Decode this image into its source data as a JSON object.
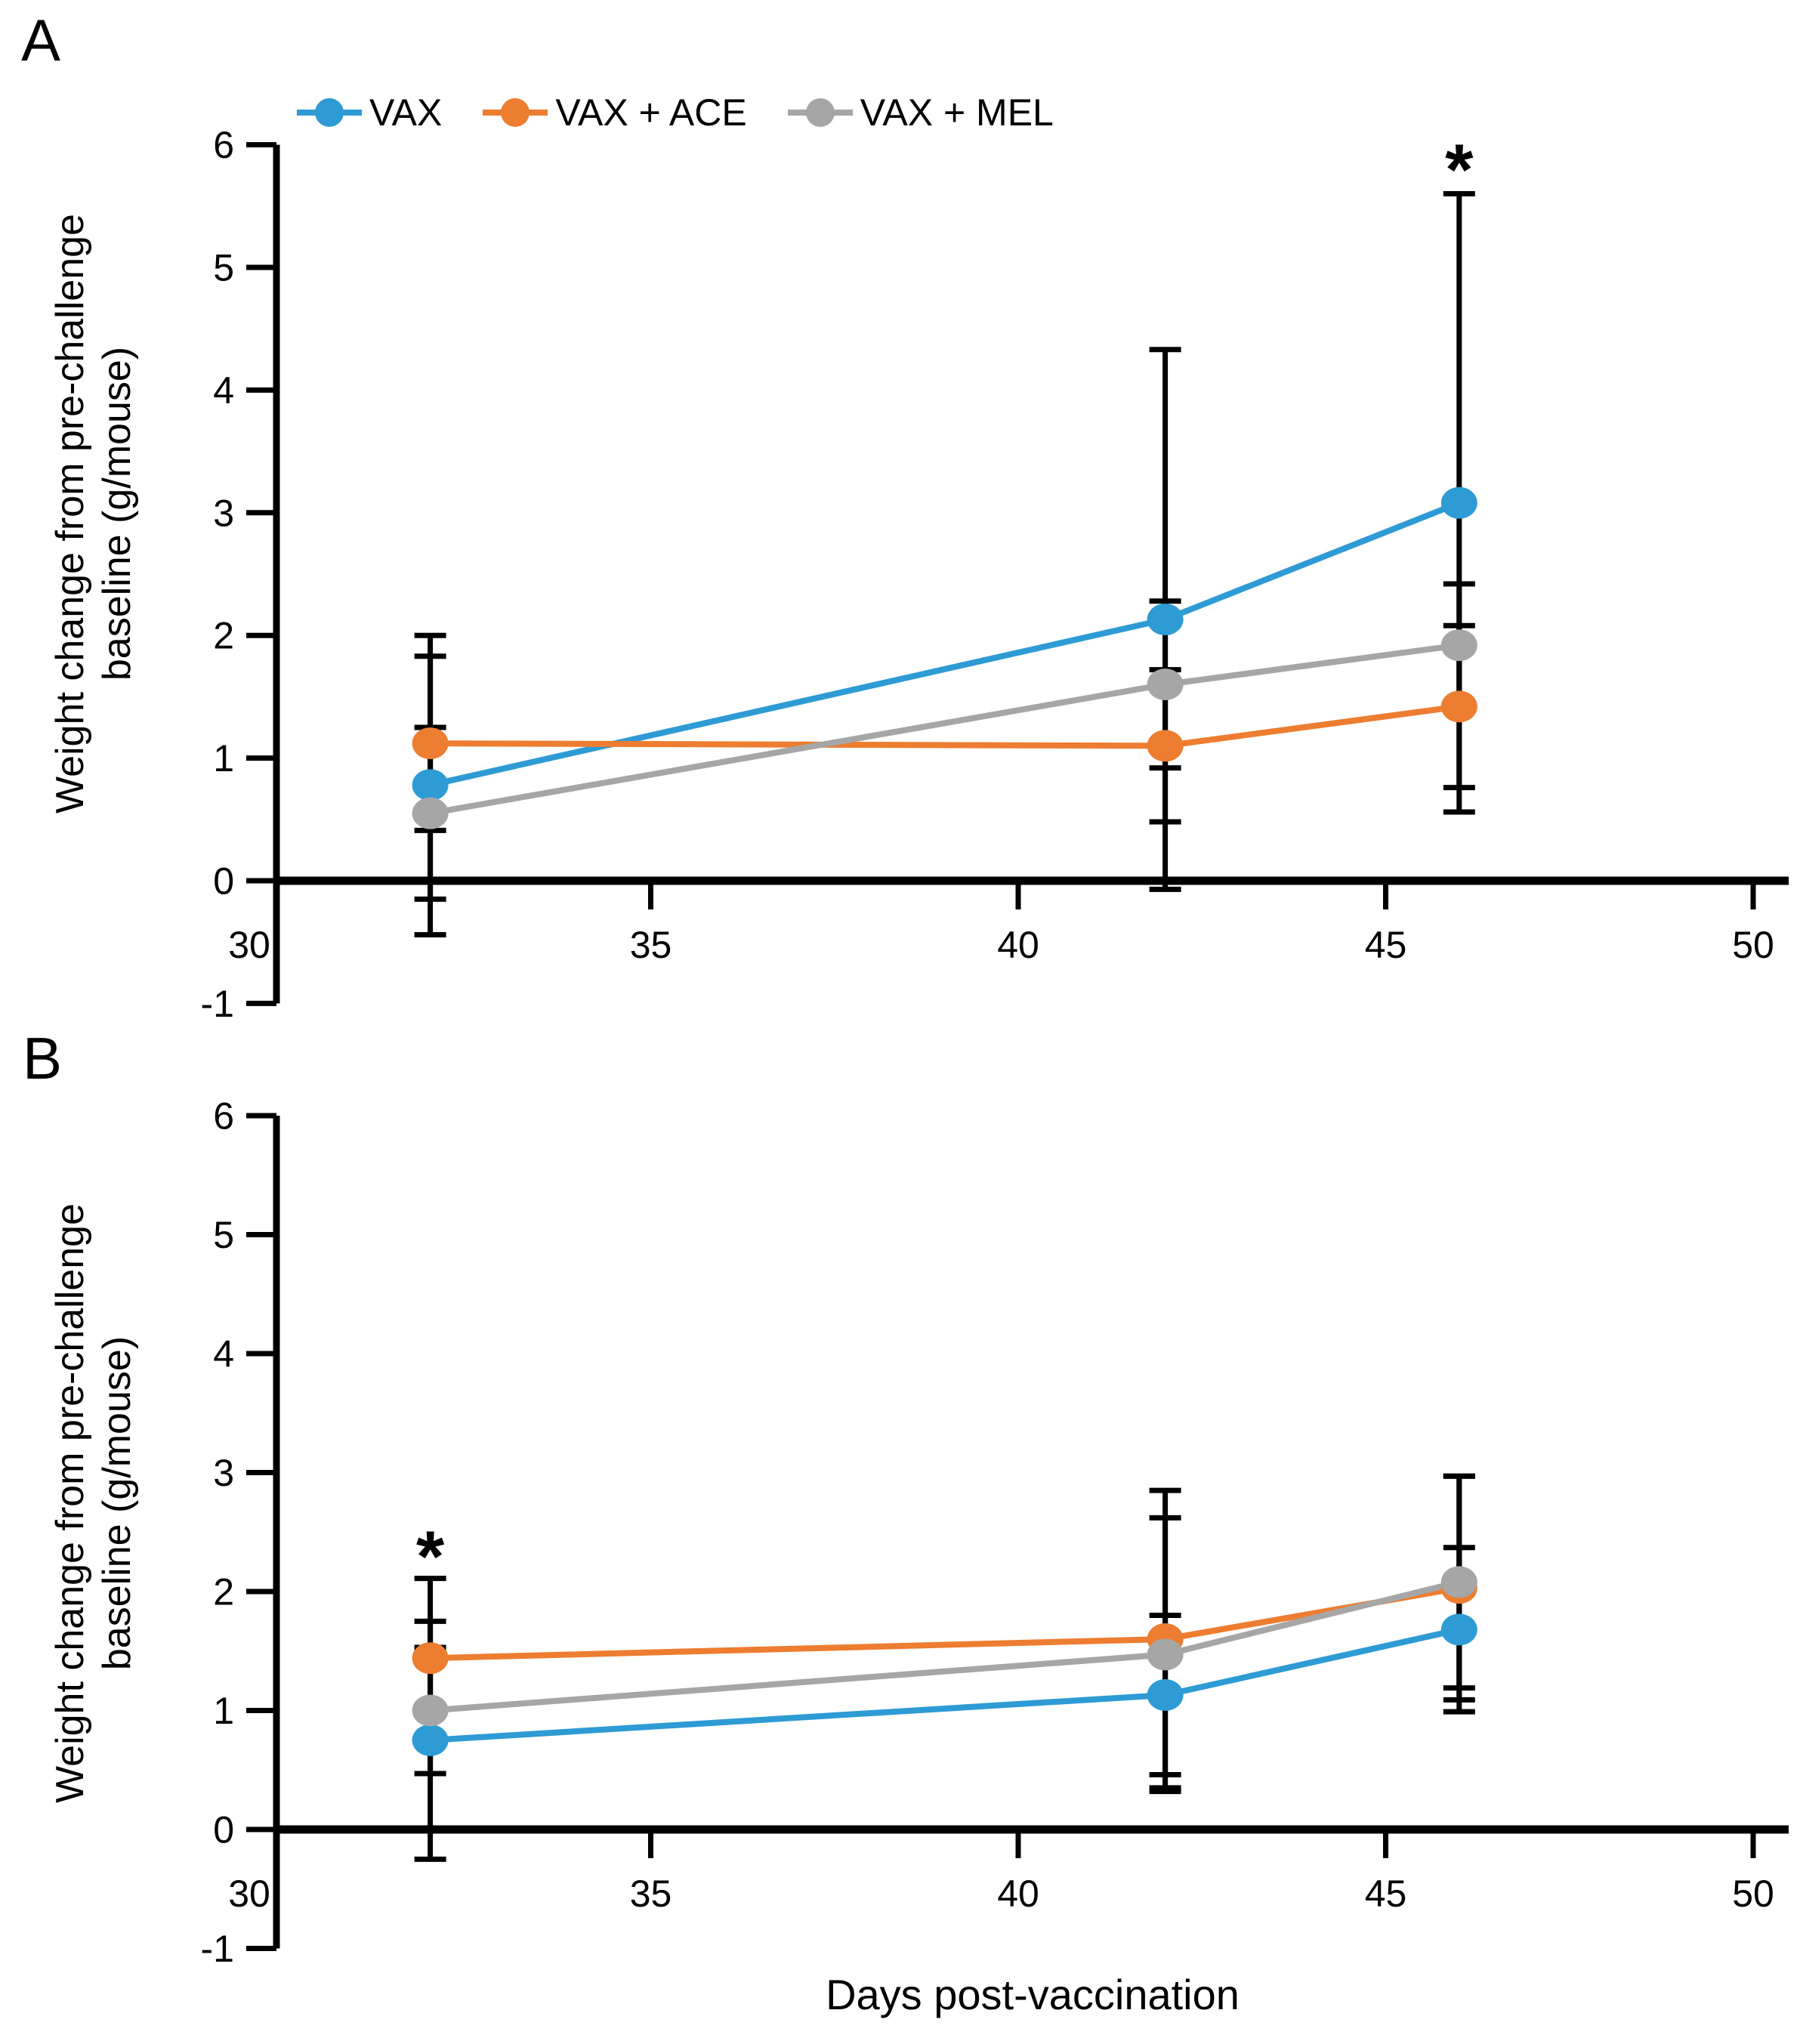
{
  "figure": {
    "panel_a_label": "A",
    "panel_b_label": "B",
    "y_axis_title_line1": "Weight change from pre-challenge",
    "y_axis_title_line2": "baseline (g/mouse)",
    "x_axis_title": "Days post-vaccination",
    "background_color": "#ffffff",
    "axis_color": "#000000"
  },
  "legend": {
    "position": "top",
    "items": [
      {
        "label": "VAX",
        "color": "#2E9BD5"
      },
      {
        "label": "VAX + ACE",
        "color": "#ED7D31"
      },
      {
        "label": "VAX + MEL",
        "color": "#A6A6A6"
      }
    ]
  },
  "chart_data": [
    {
      "type": "line",
      "panel": "A",
      "title": "",
      "xlabel": "Days post-vaccination",
      "ylabel": "Weight change from pre-challenge baseline (g/mouse)",
      "x": [
        32,
        42,
        46
      ],
      "xlim": [
        30,
        50
      ],
      "ylim": [
        -1,
        6
      ],
      "x_ticks": [
        30,
        35,
        40,
        45,
        50
      ],
      "y_ticks": [
        6,
        5,
        4,
        3,
        2,
        1,
        0,
        -1
      ],
      "grid": false,
      "error_bars": true,
      "series": [
        {
          "name": "VAX",
          "color": "#2E9BD5",
          "values": [
            0.78,
            2.13,
            3.08
          ],
          "error": [
            1.22,
            2.2,
            2.52
          ]
        },
        {
          "name": "VAX + ACE",
          "color": "#ED7D31",
          "values": [
            1.12,
            1.1,
            1.42
          ],
          "error": [
            0.71,
            0.62,
            0.66
          ]
        },
        {
          "name": "VAX + MEL",
          "color": "#A6A6A6",
          "values": [
            0.55,
            1.6,
            1.92
          ],
          "error": [
            0.7,
            0.68,
            0.5
          ]
        }
      ],
      "annotations": [
        {
          "text": "*",
          "x": 46,
          "y": 5.95
        }
      ]
    },
    {
      "type": "line",
      "panel": "B",
      "title": "",
      "xlabel": "Days post-vaccination",
      "ylabel": "Weight change from pre-challenge baseline (g/mouse)",
      "x": [
        32,
        42,
        46
      ],
      "xlim": [
        30,
        50
      ],
      "ylim": [
        -1,
        6
      ],
      "x_ticks": [
        30,
        35,
        40,
        45,
        50
      ],
      "y_ticks": [
        6,
        5,
        4,
        3,
        2,
        1,
        0,
        -1
      ],
      "grid": false,
      "error_bars": true,
      "series": [
        {
          "name": "VAX",
          "color": "#2E9BD5",
          "values": [
            0.75,
            1.13,
            1.68
          ],
          "error": [
            1.0,
            0.67,
            0.69
          ]
        },
        {
          "name": "VAX + ACE",
          "color": "#ED7D31",
          "values": [
            1.44,
            1.6,
            2.03
          ],
          "error": [
            0.67,
            1.25,
            0.94
          ]
        },
        {
          "name": "VAX + MEL",
          "color": "#A6A6A6",
          "values": [
            1.0,
            1.47,
            2.08
          ],
          "error": [
            0.53,
            1.15,
            0.89
          ]
        }
      ],
      "annotations": [
        {
          "text": "*",
          "x": 32,
          "y": 2.45
        }
      ]
    }
  ]
}
